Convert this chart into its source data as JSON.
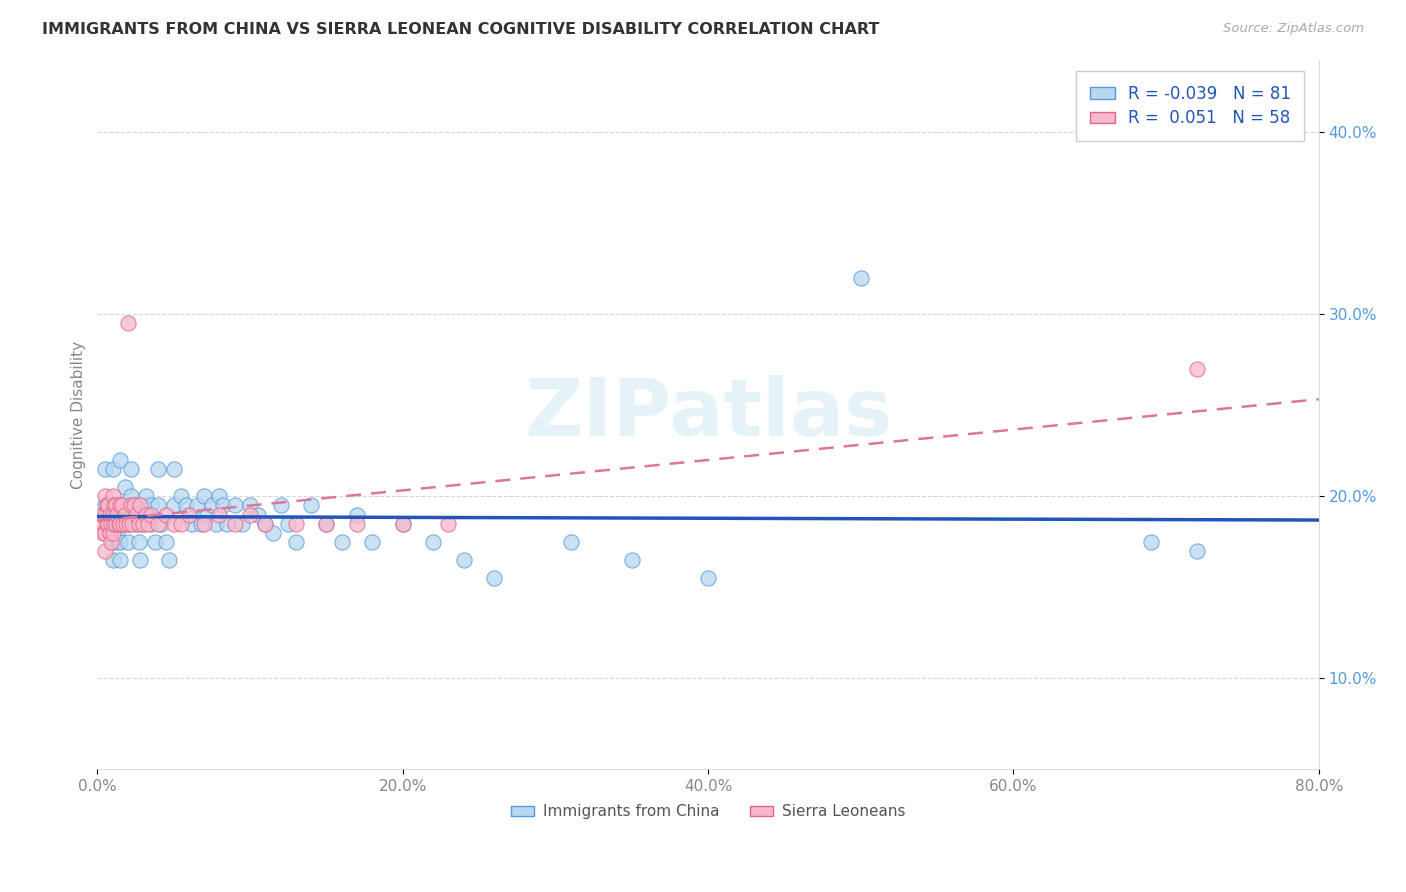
{
  "title": "IMMIGRANTS FROM CHINA VS SIERRA LEONEAN COGNITIVE DISABILITY CORRELATION CHART",
  "source": "Source: ZipAtlas.com",
  "ylabel": "Cognitive Disability",
  "xlim": [
    0.0,
    0.8
  ],
  "ylim": [
    0.05,
    0.44
  ],
  "xtick_values": [
    0.0,
    0.2,
    0.4,
    0.6,
    0.8
  ],
  "ytick_values": [
    0.1,
    0.2,
    0.3,
    0.4
  ],
  "legend_labels": [
    "Immigrants from China",
    "Sierra Leoneans"
  ],
  "r_china": -0.039,
  "n_china": 81,
  "r_sierra": 0.051,
  "n_sierra": 58,
  "china_color": "#b8d8f0",
  "sierra_color": "#f8b8cc",
  "china_edge_color": "#5599dd",
  "sierra_edge_color": "#e06688",
  "china_line_color": "#2255bb",
  "sierra_line_color": "#dd7799",
  "watermark": "ZIPatlas",
  "background_color": "#ffffff",
  "grid_color": "#cccccc",
  "china_scatter_x": [
    0.005,
    0.005,
    0.007,
    0.008,
    0.01,
    0.01,
    0.01,
    0.01,
    0.01,
    0.012,
    0.012,
    0.013,
    0.014,
    0.015,
    0.015,
    0.015,
    0.015,
    0.015,
    0.018,
    0.018,
    0.02,
    0.02,
    0.02,
    0.022,
    0.022,
    0.023,
    0.025,
    0.025,
    0.027,
    0.028,
    0.03,
    0.03,
    0.032,
    0.033,
    0.035,
    0.035,
    0.038,
    0.04,
    0.04,
    0.042,
    0.045,
    0.047,
    0.05,
    0.05,
    0.055,
    0.058,
    0.06,
    0.062,
    0.065,
    0.068,
    0.07,
    0.072,
    0.075,
    0.078,
    0.08,
    0.082,
    0.085,
    0.09,
    0.095,
    0.1,
    0.105,
    0.11,
    0.115,
    0.12,
    0.125,
    0.13,
    0.14,
    0.15,
    0.16,
    0.17,
    0.18,
    0.2,
    0.22,
    0.24,
    0.26,
    0.31,
    0.35,
    0.4,
    0.5,
    0.69,
    0.72
  ],
  "china_scatter_y": [
    0.215,
    0.195,
    0.19,
    0.185,
    0.215,
    0.195,
    0.185,
    0.175,
    0.165,
    0.195,
    0.185,
    0.18,
    0.175,
    0.22,
    0.195,
    0.185,
    0.175,
    0.165,
    0.205,
    0.19,
    0.195,
    0.185,
    0.175,
    0.215,
    0.2,
    0.19,
    0.195,
    0.185,
    0.175,
    0.165,
    0.195,
    0.185,
    0.2,
    0.19,
    0.195,
    0.185,
    0.175,
    0.215,
    0.195,
    0.185,
    0.175,
    0.165,
    0.215,
    0.195,
    0.2,
    0.195,
    0.19,
    0.185,
    0.195,
    0.185,
    0.2,
    0.19,
    0.195,
    0.185,
    0.2,
    0.195,
    0.185,
    0.195,
    0.185,
    0.195,
    0.19,
    0.185,
    0.18,
    0.195,
    0.185,
    0.175,
    0.195,
    0.185,
    0.175,
    0.19,
    0.175,
    0.185,
    0.175,
    0.165,
    0.155,
    0.175,
    0.165,
    0.155,
    0.32,
    0.175,
    0.17
  ],
  "sierra_scatter_x": [
    0.003,
    0.004,
    0.004,
    0.005,
    0.005,
    0.005,
    0.005,
    0.006,
    0.006,
    0.007,
    0.007,
    0.008,
    0.008,
    0.009,
    0.009,
    0.01,
    0.01,
    0.01,
    0.011,
    0.011,
    0.012,
    0.012,
    0.013,
    0.014,
    0.015,
    0.015,
    0.016,
    0.017,
    0.018,
    0.019,
    0.02,
    0.021,
    0.022,
    0.023,
    0.024,
    0.025,
    0.027,
    0.028,
    0.03,
    0.032,
    0.033,
    0.035,
    0.04,
    0.045,
    0.05,
    0.055,
    0.06,
    0.07,
    0.08,
    0.09,
    0.1,
    0.11,
    0.13,
    0.15,
    0.17,
    0.2,
    0.23,
    0.72
  ],
  "sierra_scatter_y": [
    0.19,
    0.185,
    0.18,
    0.2,
    0.19,
    0.18,
    0.17,
    0.195,
    0.185,
    0.195,
    0.185,
    0.19,
    0.18,
    0.185,
    0.175,
    0.2,
    0.19,
    0.18,
    0.195,
    0.185,
    0.195,
    0.185,
    0.19,
    0.185,
    0.195,
    0.185,
    0.195,
    0.185,
    0.19,
    0.185,
    0.295,
    0.185,
    0.195,
    0.185,
    0.195,
    0.19,
    0.185,
    0.195,
    0.185,
    0.19,
    0.185,
    0.19,
    0.185,
    0.19,
    0.185,
    0.185,
    0.19,
    0.185,
    0.19,
    0.185,
    0.19,
    0.185,
    0.185,
    0.185,
    0.185,
    0.185,
    0.185,
    0.27
  ]
}
